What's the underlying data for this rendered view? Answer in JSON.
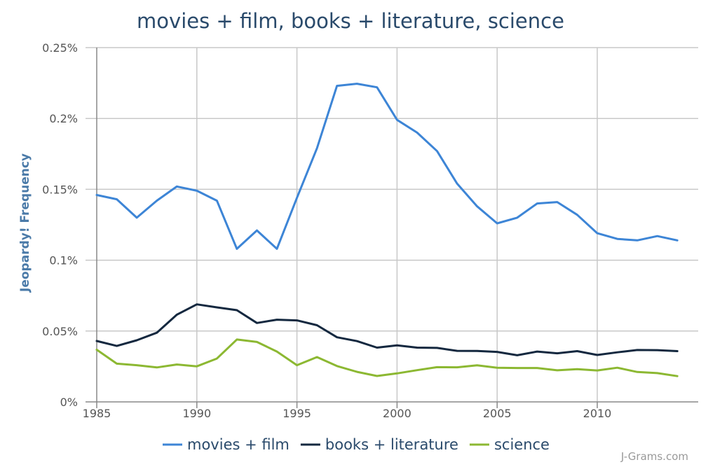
{
  "credit": "J-Grams.com",
  "chart_data": {
    "type": "line",
    "title": "movies + film, books + literature, science",
    "xlabel": "",
    "ylabel": "Jeopardy! Frequency",
    "xlim": [
      1985,
      2014
    ],
    "ylim": [
      0,
      0.25
    ],
    "x_ticks": [
      1985,
      1990,
      1995,
      2000,
      2005,
      2010
    ],
    "x_tick_labels": [
      "1985",
      "1990",
      "1995",
      "2000",
      "2005",
      "2010"
    ],
    "y_ticks": [
      0,
      0.05,
      0.1,
      0.15,
      0.2,
      0.25
    ],
    "y_tick_labels": [
      "0%",
      "0.05%",
      "0.1%",
      "0.15%",
      "0.2%",
      "0.25%"
    ],
    "grid": true,
    "legend": "bottom-center",
    "x": [
      1985,
      1986,
      1987,
      1988,
      1989,
      1990,
      1991,
      1992,
      1993,
      1994,
      1995,
      1996,
      1997,
      1998,
      1999,
      2000,
      2001,
      2002,
      2003,
      2004,
      2005,
      2006,
      2007,
      2008,
      2009,
      2010,
      2011,
      2012,
      2013,
      2014
    ],
    "series": [
      {
        "name": "movies + film",
        "color": "#3d85d6",
        "values": [
          0.146,
          0.143,
          0.13,
          0.142,
          0.152,
          0.149,
          0.142,
          0.108,
          0.121,
          0.108,
          0.144,
          0.179,
          0.223,
          0.2245,
          0.222,
          0.199,
          0.19,
          0.177,
          0.154,
          0.138,
          0.126,
          0.13,
          0.14,
          0.141,
          0.132,
          0.119,
          0.115,
          0.114,
          0.117,
          0.114
        ]
      },
      {
        "name": "books + literature",
        "color": "#14283f",
        "values": [
          0.043,
          0.0395,
          0.0435,
          0.0488,
          0.0615,
          0.0688,
          0.0667,
          0.0647,
          0.0557,
          0.058,
          0.0575,
          0.0541,
          0.0456,
          0.0429,
          0.0383,
          0.0399,
          0.0383,
          0.0381,
          0.036,
          0.0359,
          0.0353,
          0.0329,
          0.0355,
          0.0343,
          0.0358,
          0.0331,
          0.035,
          0.0366,
          0.0365,
          0.0358
        ]
      },
      {
        "name": "science",
        "color": "#8cb832",
        "values": [
          0.0368,
          0.027,
          0.0259,
          0.0243,
          0.0264,
          0.0251,
          0.0306,
          0.044,
          0.0423,
          0.0355,
          0.0259,
          0.0316,
          0.0253,
          0.0212,
          0.0183,
          0.0201,
          0.0224,
          0.0245,
          0.0244,
          0.0258,
          0.0241,
          0.0239,
          0.0239,
          0.0223,
          0.0231,
          0.0222,
          0.0241,
          0.0211,
          0.0203,
          0.0182
        ]
      }
    ]
  }
}
